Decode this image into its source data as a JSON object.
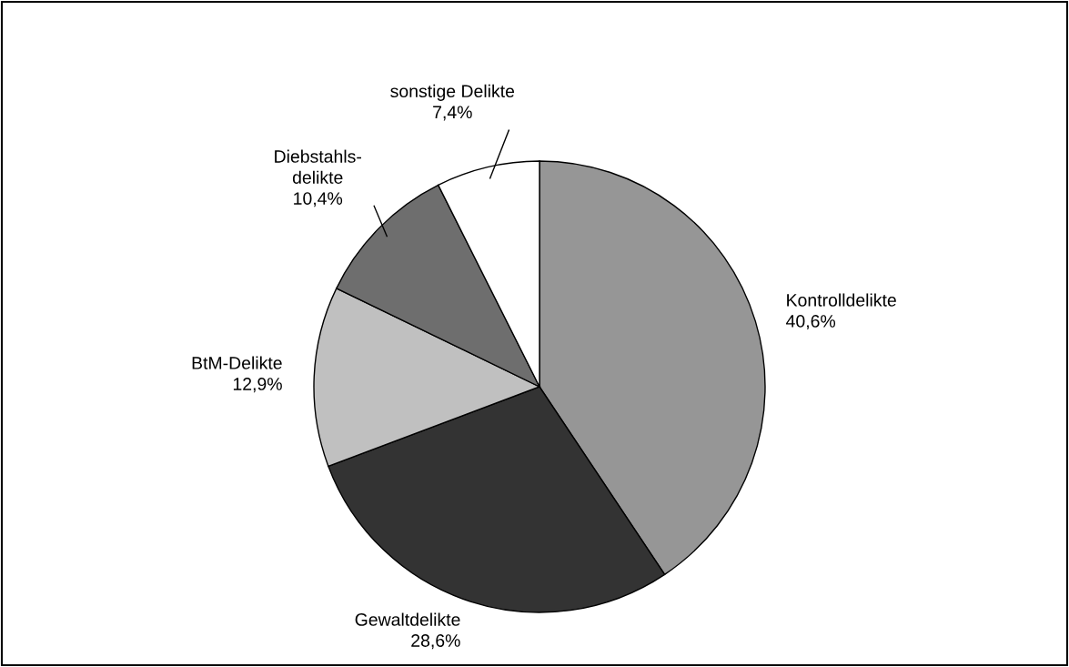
{
  "chart_data": {
    "type": "pie",
    "categories": [
      "Kontrolldelikte",
      "Gewaltdelikte",
      "BtM-Delikte",
      "Diebstahls-\ndelikte",
      "sonstige Delikte"
    ],
    "values": [
      40.6,
      28.6,
      12.9,
      10.4,
      7.4
    ],
    "value_labels": [
      "40,6%",
      "28,6%",
      "12,9%",
      "10,4%",
      "7,4%"
    ],
    "colors": [
      "#969696",
      "#333333",
      "#c0c0c0",
      "#6e6e6e",
      "#ffffff"
    ],
    "legend": false
  }
}
